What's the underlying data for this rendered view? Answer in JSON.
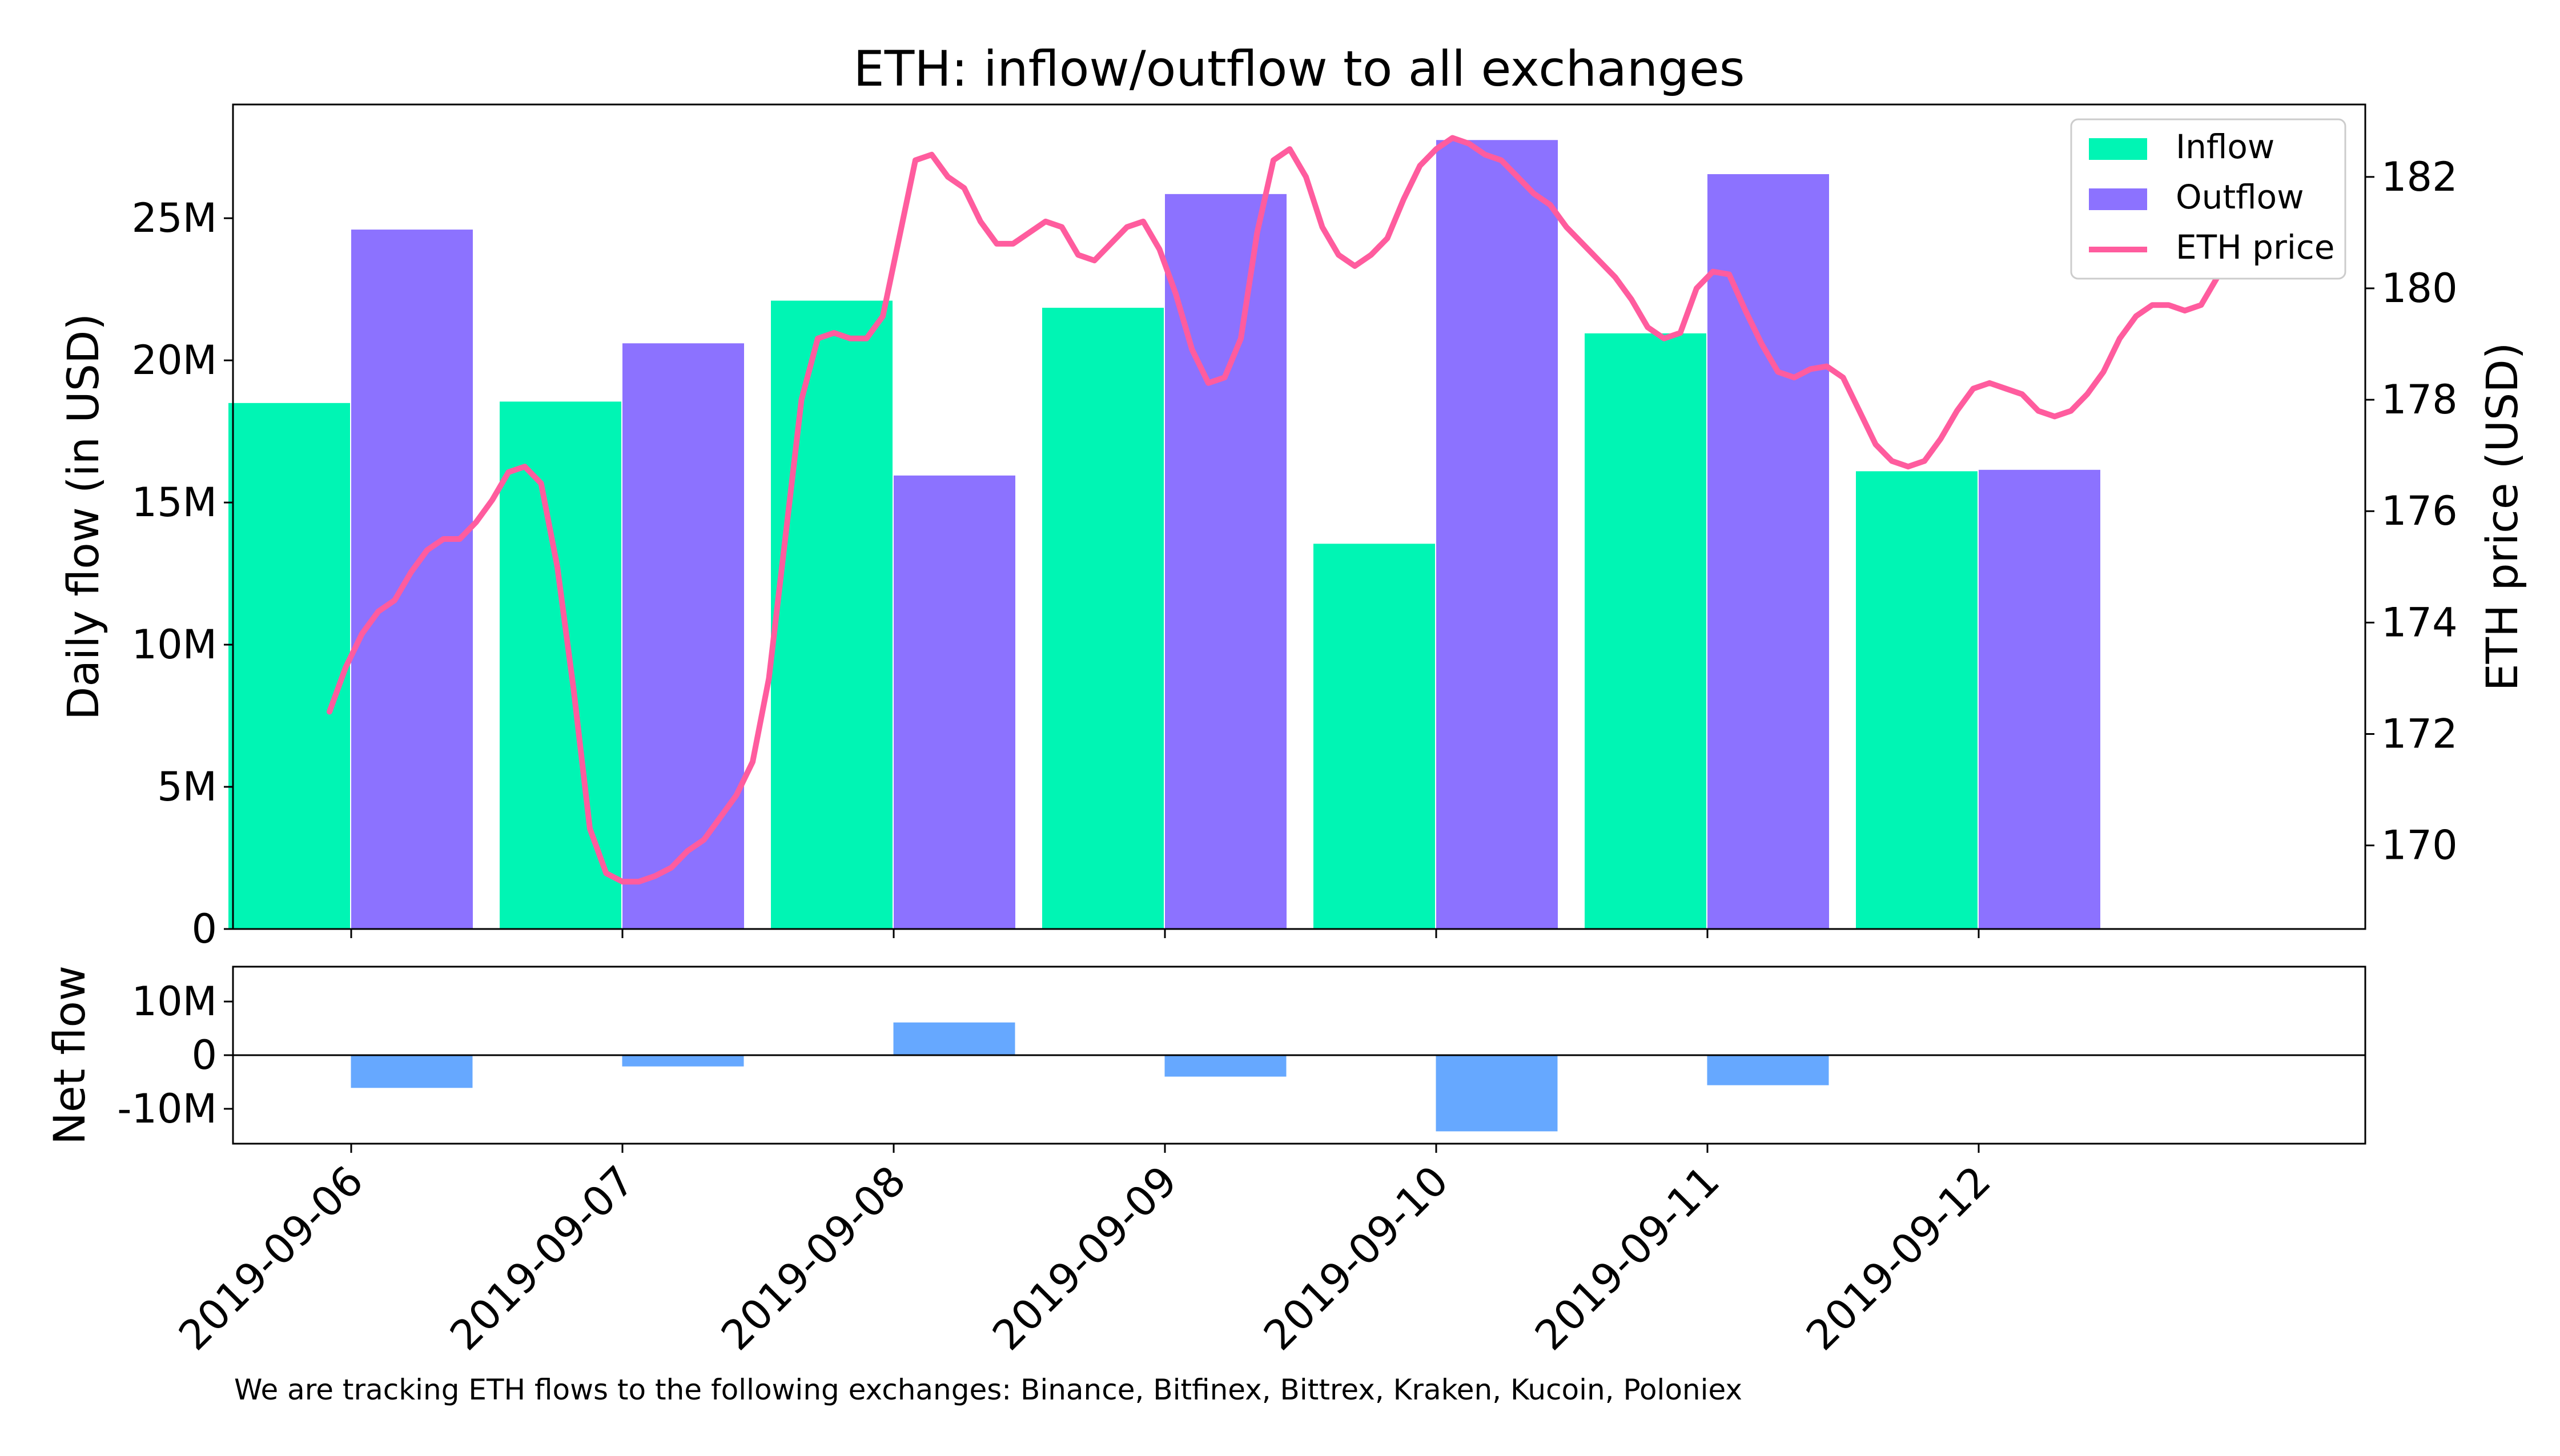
{
  "chart_data": [
    {
      "type": "bar",
      "title": "ETH: inflow/outflow to all exchanges",
      "ylabel": "Daily flow (in USD)",
      "y2label": "ETH price (USD)",
      "ylim": [
        0,
        29000000
      ],
      "y2lim": [
        168.5,
        183.3
      ],
      "yticks": [
        0,
        5000000,
        10000000,
        15000000,
        20000000,
        25000000
      ],
      "ytick_labels": [
        "0",
        "5M",
        "10M",
        "15M",
        "20M",
        "25M"
      ],
      "y2ticks": [
        170,
        172,
        174,
        176,
        178,
        180,
        182
      ],
      "y2tick_labels": [
        "170",
        "172",
        "174",
        "176",
        "178",
        "180",
        "182"
      ],
      "categories": [
        "2019-09-06",
        "2019-09-07",
        "2019-09-08",
        "2019-09-09",
        "2019-09-10",
        "2019-09-11",
        "2019-09-12"
      ],
      "series": [
        {
          "name": "Inflow",
          "color": "#00f5b4",
          "values": [
            18500000,
            18550000,
            22100000,
            21850000,
            13550000,
            20950000,
            16100000
          ]
        },
        {
          "name": "Outflow",
          "color": "#8c72ff",
          "values": [
            24600000,
            20600000,
            15950000,
            25850000,
            27750000,
            26550000,
            16150000
          ]
        }
      ],
      "line_series": {
        "name": "ETH price",
        "color": "#ff5c9e",
        "axis": "right",
        "values": [
          172.4,
          173.2,
          173.8,
          174.2,
          174.4,
          174.9,
          175.3,
          175.5,
          175.5,
          175.8,
          176.2,
          176.7,
          176.8,
          176.5,
          175.0,
          172.8,
          170.3,
          169.5,
          169.35,
          169.35,
          169.45,
          169.6,
          169.9,
          170.1,
          170.5,
          170.9,
          171.5,
          173.0,
          175.5,
          178.0,
          179.1,
          179.2,
          179.1,
          179.1,
          179.5,
          180.9,
          182.3,
          182.4,
          182.0,
          181.8,
          181.2,
          180.8,
          180.8,
          181.0,
          181.2,
          181.1,
          180.6,
          180.5,
          180.8,
          181.1,
          181.2,
          180.7,
          179.9,
          178.9,
          178.3,
          178.4,
          179.1,
          181.0,
          182.3,
          182.5,
          182.0,
          181.1,
          180.6,
          180.4,
          180.6,
          180.9,
          181.6,
          182.2,
          182.5,
          182.7,
          182.6,
          182.4,
          182.3,
          182.0,
          181.7,
          181.5,
          181.1,
          180.8,
          180.5,
          180.2,
          179.8,
          179.3,
          179.1,
          179.2,
          180.0,
          180.3,
          180.25,
          179.6,
          179.0,
          178.5,
          178.4,
          178.55,
          178.6,
          178.4,
          177.8,
          177.2,
          176.9,
          176.8,
          176.9,
          177.3,
          177.8,
          178.2,
          178.3,
          178.2,
          178.1,
          177.8,
          177.7,
          177.8,
          178.1,
          178.5,
          179.1,
          179.5,
          179.7,
          179.7,
          179.6,
          179.7,
          180.2,
          180.8,
          181.0
        ]
      },
      "legend": {
        "placement": "top-right",
        "entries": [
          "Inflow",
          "Outflow",
          "ETH price"
        ]
      },
      "grid": false
    },
    {
      "type": "bar",
      "ylabel": "Net flow",
      "ylim": [
        -16500000,
        16500000
      ],
      "yticks": [
        -10000000,
        0,
        10000000
      ],
      "ytick_labels": [
        "-10M",
        "0",
        "10M"
      ],
      "categories": [
        "2019-09-06",
        "2019-09-07",
        "2019-09-08",
        "2019-09-09",
        "2019-09-10",
        "2019-09-11",
        "2019-09-12"
      ],
      "series": [
        {
          "name": "Net flow",
          "color": "#66a8ff",
          "values": [
            -6100000,
            -2100000,
            6100000,
            -4000000,
            -14200000,
            -5600000,
            -50000
          ]
        }
      ],
      "zero_line": true,
      "grid": false
    }
  ],
  "footnote": "We are tracking ETH flows to the following exchanges: Binance, Bitfinex, Bittrex, Kraken, Kucoin, Poloniex"
}
